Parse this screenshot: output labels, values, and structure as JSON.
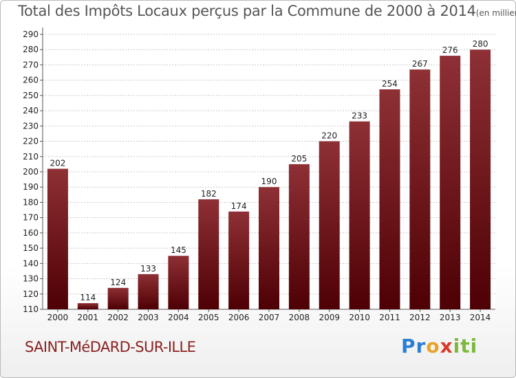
{
  "title": "Total des Impôts Locaux perçus par la Commune de 2000 à 2014",
  "title_unit": "(en milliers d'€)",
  "commune": "SAINT-MéDARD-SUR-ILLE",
  "logo": {
    "text": "Proxiti",
    "letters": [
      "Pr",
      "o",
      "x",
      "iti"
    ]
  },
  "colors": {
    "bar_light": "#8e3035",
    "bar_dark": "#4e0004",
    "grid": "#c8c8c8"
  },
  "chart_data": {
    "type": "bar",
    "categories": [
      "2000",
      "2001",
      "2002",
      "2003",
      "2004",
      "2005",
      "2006",
      "2007",
      "2008",
      "2009",
      "2010",
      "2011",
      "2012",
      "2013",
      "2014"
    ],
    "values": [
      202,
      114,
      124,
      133,
      145,
      182,
      174,
      190,
      205,
      220,
      233,
      254,
      267,
      276,
      280
    ],
    "ylim": [
      110,
      290
    ],
    "yticks": [
      110,
      120,
      130,
      140,
      150,
      160,
      170,
      180,
      190,
      200,
      210,
      220,
      230,
      240,
      250,
      260,
      270,
      280,
      290
    ],
    "grid": true,
    "legend": "none"
  }
}
